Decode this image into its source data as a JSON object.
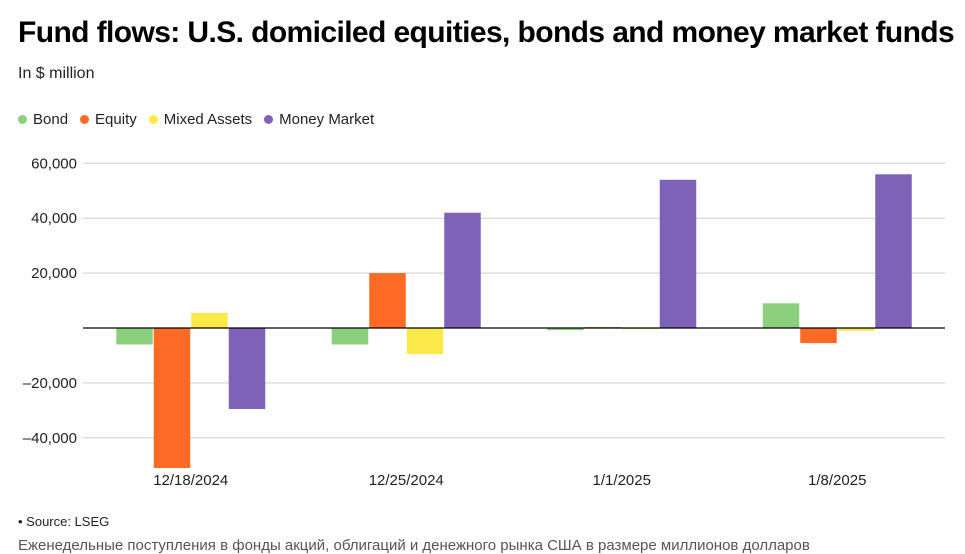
{
  "header": {
    "title": "Fund flows: U.S. domiciled equities, bonds and money market funds",
    "subtitle": "In $ million"
  },
  "legend": [
    {
      "label": "Bond",
      "color": "#8ccf7e"
    },
    {
      "label": "Equity",
      "color": "#fd6a24"
    },
    {
      "label": "Mixed Assets",
      "color": "#fbe94a"
    },
    {
      "label": "Money Market",
      "color": "#7d62b8"
    }
  ],
  "footer": {
    "source": "• Source: LSEG",
    "caption": "Еженедельные поступления в фонды акций, облигаций и денежного рынка США в размере миллионов долларов"
  },
  "chart_data": {
    "type": "bar",
    "title": "Fund flows: U.S. domiciled equities, bonds and money market funds",
    "ylabel": "In $ million",
    "xlabel": "",
    "ylim": [
      -52000,
      62000
    ],
    "yticks": [
      60000,
      40000,
      20000,
      -20000,
      -40000
    ],
    "ytick_labels": [
      "60,000",
      "40,000",
      "20,000",
      "–20,000",
      "–40,000"
    ],
    "categories": [
      "12/18/2024",
      "12/25/2024",
      "1/1/2025",
      "1/8/2025"
    ],
    "series": [
      {
        "name": "Bond",
        "color": "#8ccf7e",
        "values": [
          -6000,
          -6000,
          -800,
          9000
        ]
      },
      {
        "name": "Equity",
        "color": "#fd6a24",
        "values": [
          -51000,
          20000,
          300,
          -5500
        ]
      },
      {
        "name": "Mixed Assets",
        "color": "#fbe94a",
        "values": [
          5500,
          -9500,
          -400,
          -1000
        ]
      },
      {
        "name": "Money Market",
        "color": "#7d62b8",
        "values": [
          -29500,
          42000,
          54000,
          56000
        ]
      }
    ]
  }
}
